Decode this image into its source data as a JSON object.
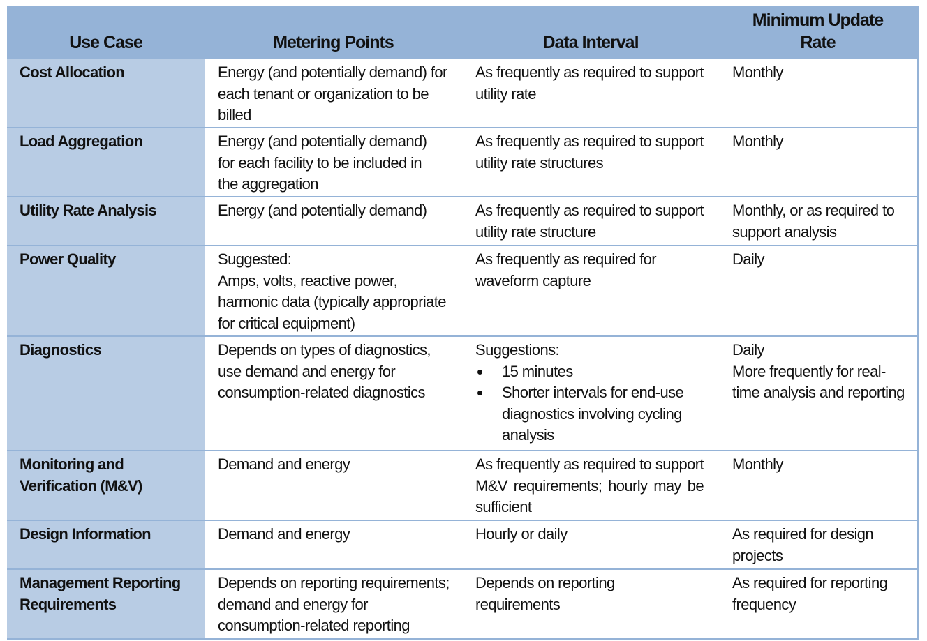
{
  "headers": [
    "Use Case",
    "Metering Points",
    "Data Interval",
    "Minimum Update Rate"
  ],
  "rows": [
    {
      "use_case": "Cost Allocation",
      "metering": "Energy (and potentially demand) for each tenant or organization to be billed",
      "interval": "As frequently as required to support utility rate",
      "rate": "Monthly"
    },
    {
      "use_case": "Load Aggregation",
      "metering": "Energy (and potentially demand) for each facility to be included in the aggregation",
      "interval": "As frequently as required to support utility rate structures",
      "rate": "Monthly"
    },
    {
      "use_case": "Utility Rate Analysis",
      "metering": "Energy (and potentially demand)",
      "interval": "As frequently as required to support utility rate structure",
      "rate": "Monthly, or as required to support analysis"
    },
    {
      "use_case": "Power Quality",
      "metering_intro": "Suggested:",
      "metering": "Amps, volts, reactive power, harmonic data (typically appropriate for critical equipment)",
      "interval": "As frequently as required for waveform capture",
      "rate": "Daily"
    },
    {
      "use_case": "Diagnostics",
      "metering": "Depends on types of diagnostics, use demand and energy for consumption-related diagnostics",
      "interval_intro": "Suggestions:",
      "interval_bullets": [
        "15 minutes",
        "Shorter intervals for end-use diagnostics involving cycling analysis"
      ],
      "rate": "Daily",
      "rate_extra": "More frequently for real-time analysis and reporting"
    },
    {
      "use_case": "Monitoring and Verification (M&V)",
      "metering": "Demand and energy",
      "interval": "As frequently as required to support M&V requirements; hourly may be sufficient",
      "rate": "Monthly"
    },
    {
      "use_case": "Design Information",
      "metering": "Demand and energy",
      "interval": "Hourly or daily",
      "rate": "As required for design projects"
    },
    {
      "use_case": "Management Reporting Requirements",
      "metering": "Depends on reporting requirements; demand and energy for consumption-related reporting",
      "interval": "Depends on reporting requirements",
      "rate": "As required for reporting frequency"
    }
  ],
  "colors": {
    "header_bg": "#95b3d7",
    "first_col_bg": "#b8cce4",
    "cell_bg": "#ffffff"
  }
}
